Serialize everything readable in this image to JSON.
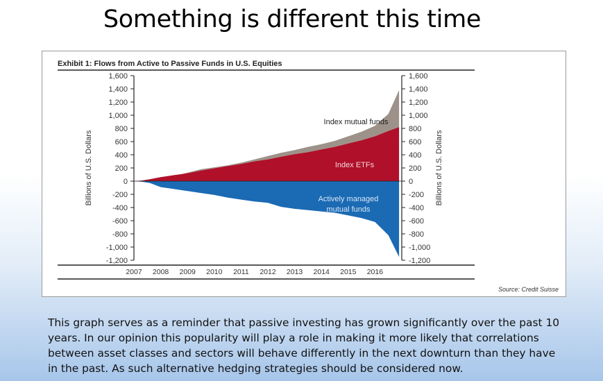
{
  "slide": {
    "title": "Something is different this time",
    "caption": "This graph serves as a reminder that passive investing has grown significantly over the past 10 years. In our opinion this popularity will play a role in making it more likely that correlations between asset classes and sectors will behave differently in the next downturn than they have in the past. As such alternative hedging strategies should be considered now."
  },
  "chart_data": {
    "type": "area",
    "title": "Exhibit 1: Flows from Active to Passive Funds in U.S. Equities",
    "ylabel_left": "Billions of U.S. Dollars",
    "ylabel_right": "Billions of U.S. Dollars",
    "source": "Source:  Credit Suisse",
    "ylim": [
      -1200,
      1600
    ],
    "yticks": [
      1600,
      1400,
      1200,
      1000,
      800,
      600,
      400,
      200,
      0,
      -200,
      -400,
      -600,
      -800,
      -1000,
      -1200
    ],
    "ytick_labels": [
      "1,600",
      "1,400",
      "1,200",
      "1,000",
      "800",
      "600",
      "400",
      "200",
      "0",
      "-200",
      "-400",
      "-600",
      "-800",
      "-1,000",
      "-1,200"
    ],
    "xlim": [
      2007,
      2017
    ],
    "xticks": [
      "2007",
      "2008",
      "2009",
      "2010",
      "2011",
      "2012",
      "2013",
      "2014",
      "2015",
      "2016"
    ],
    "legend": "inline labels",
    "grid": false,
    "colors": {
      "index_etfs": "#b0102a",
      "index_mutual_funds": "#9d9289",
      "active": "#1b6ab4"
    },
    "annotations": [
      "Index mutual funds",
      "Index ETFs",
      "Actively managed",
      "mutual funds"
    ],
    "x": [
      2007.0,
      2007.3,
      2007.6,
      2008.0,
      2008.5,
      2009.0,
      2009.5,
      2010.0,
      2010.5,
      2011.0,
      2011.5,
      2012.0,
      2012.5,
      2013.0,
      2013.5,
      2014.0,
      2014.5,
      2015.0,
      2015.5,
      2016.0,
      2016.5,
      2016.9
    ],
    "series": [
      {
        "name": "Index ETFs",
        "values": [
          0,
          10,
          30,
          60,
          90,
          120,
          160,
          195,
          230,
          260,
          300,
          330,
          370,
          410,
          440,
          480,
          520,
          570,
          620,
          680,
          760,
          820
        ]
      },
      {
        "name": "Index mutual funds",
        "values": [
          0,
          10,
          20,
          40,
          80,
          130,
          180,
          210,
          240,
          280,
          330,
          380,
          430,
          470,
          520,
          560,
          610,
          680,
          750,
          840,
          1020,
          1380
        ]
      },
      {
        "name": "Actively managed mutual funds",
        "values": [
          0,
          -10,
          -30,
          -90,
          -120,
          -150,
          -180,
          -210,
          -250,
          -280,
          -310,
          -330,
          -390,
          -420,
          -440,
          -460,
          -480,
          -520,
          -560,
          -620,
          -820,
          -1150
        ]
      }
    ]
  }
}
